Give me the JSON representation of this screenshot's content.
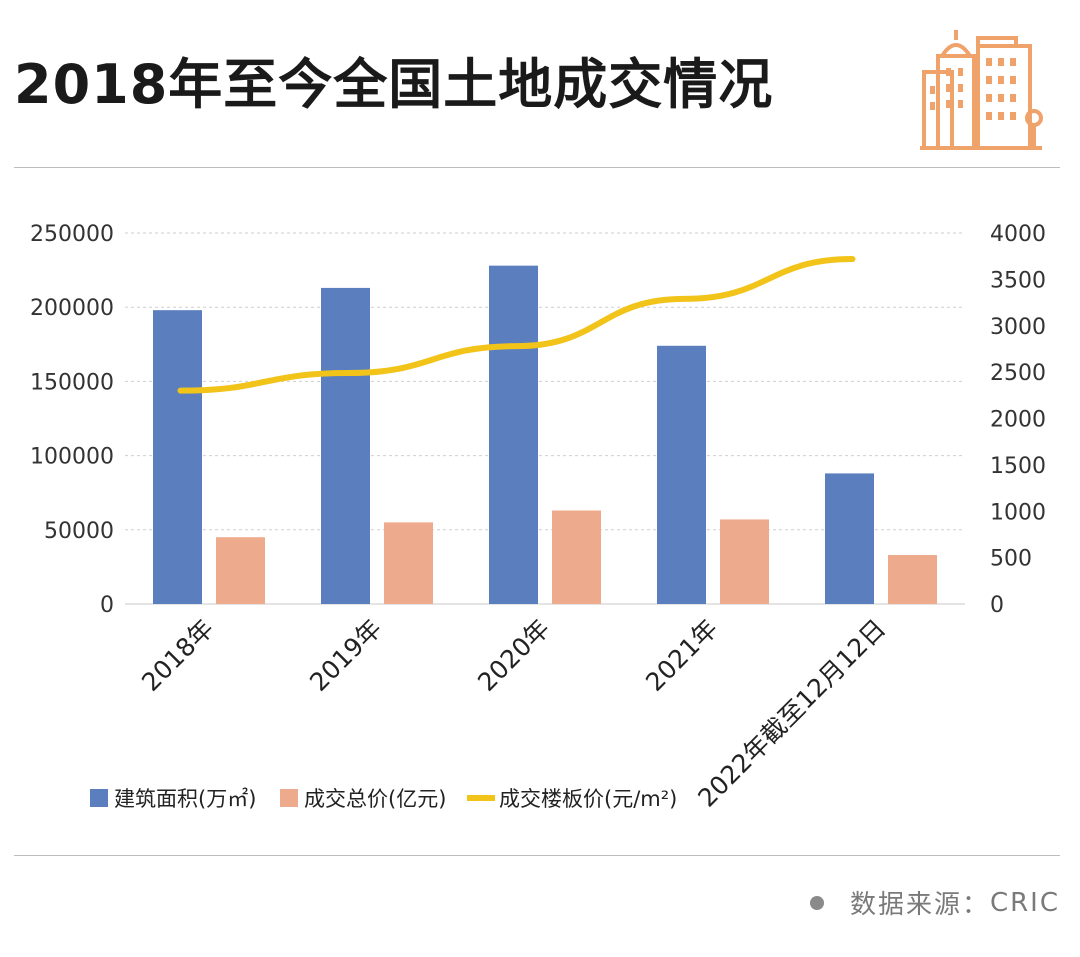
{
  "title": "2018年至今全国土地成交情况",
  "footer": {
    "label": "数据来源：",
    "source": "CRIC"
  },
  "colors": {
    "area": "#5b7fbe",
    "price_total": "#eeaa8c",
    "floor_price": "#f2c318",
    "icon": "#f0a26b"
  },
  "chart_data": {
    "type": "bar",
    "categories": [
      "2018年",
      "2019年",
      "2020年",
      "2021年",
      "2022年截至12月12日"
    ],
    "series": [
      {
        "name": "建筑面积(万㎡)",
        "type": "bar",
        "axis": "left",
        "values": [
          198000,
          213000,
          228000,
          174000,
          88000
        ]
      },
      {
        "name": "成交总价(亿元)",
        "type": "bar",
        "axis": "left",
        "values": [
          45000,
          55000,
          63000,
          57000,
          33000
        ]
      },
      {
        "name": "成交楼板价(元/m²)",
        "type": "line",
        "axis": "right",
        "values": [
          2300,
          2490,
          2780,
          3290,
          3720
        ]
      }
    ],
    "y_left": {
      "ylim": [
        0,
        250000
      ],
      "ticks": [
        "0",
        "50000",
        "100000",
        "150000",
        "200000",
        "250000"
      ]
    },
    "y_right": {
      "ylim": [
        0,
        4000
      ],
      "ticks": [
        "0",
        "500",
        "1000",
        "1500",
        "2000",
        "2500",
        "3000",
        "3500",
        "4000"
      ]
    },
    "grid": true,
    "legend_position": "bottom"
  }
}
